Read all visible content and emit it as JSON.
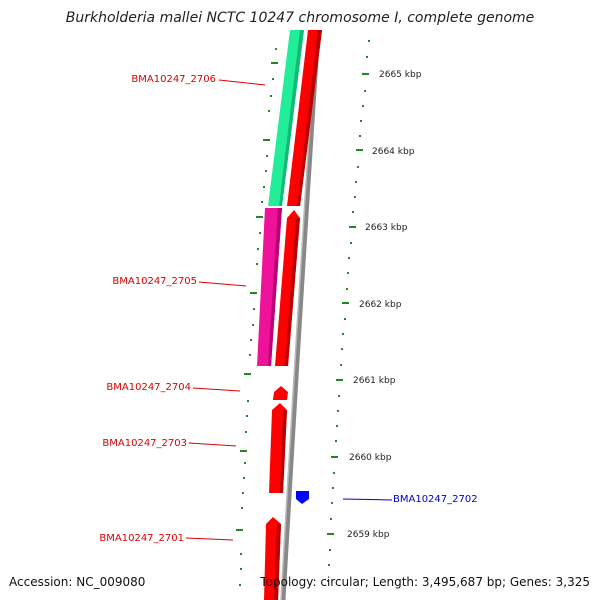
{
  "title": "Burkholderia mallei NCTC 10247 chromosome I, complete genome",
  "footer": {
    "accession": "Accession: NC_009080",
    "summary": "Topology: circular; Length: 3,495,687 bp; Genes: 3,325"
  },
  "colors": {
    "cds": "#ff0000",
    "cds_reverse": "#0000ff",
    "label_forward": "#dd0000",
    "label_reverse": "#0000cc",
    "track_cog_a": "#22ee99",
    "track_cog_b": "#ee1199",
    "backbone": "#888888",
    "ticks": "#228822"
  },
  "ticks": [
    "2665 kbp",
    "2664 kbp",
    "2663 kbp",
    "2662 kbp",
    "2661 kbp",
    "2660 kbp",
    "2659 kbp"
  ],
  "genes": [
    {
      "label": "BMA10247_2706",
      "strand": "forward"
    },
    {
      "label": "BMA10247_2705",
      "strand": "forward"
    },
    {
      "label": "BMA10247_2704",
      "strand": "forward"
    },
    {
      "label": "BMA10247_2703",
      "strand": "forward"
    },
    {
      "label": "BMA10247_2702",
      "strand": "reverse"
    },
    {
      "label": "BMA10247_2701",
      "strand": "forward"
    }
  ]
}
